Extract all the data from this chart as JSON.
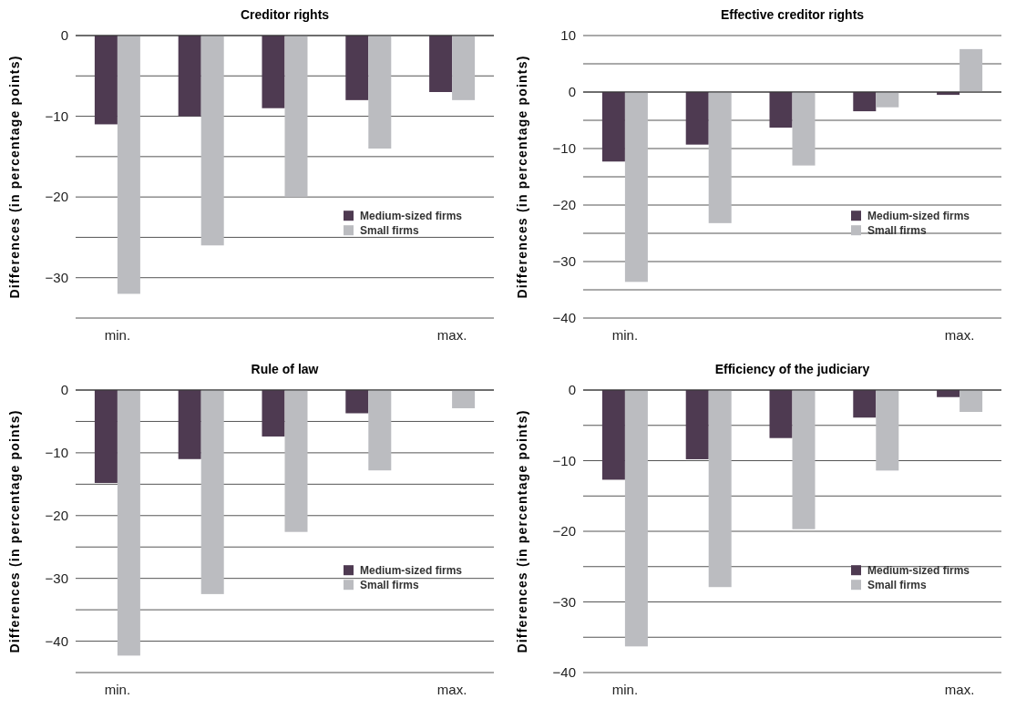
{
  "chart_data": [
    {
      "type": "bar",
      "title": "Creditor rights",
      "ylabel": "Differences (in percentage points)",
      "categories": [
        "min.",
        null,
        null,
        null,
        "max."
      ],
      "series": [
        {
          "name": "Medium-sized firms",
          "color": "#4e3a51",
          "values": [
            -11,
            -10,
            -9,
            -8,
            -7
          ]
        },
        {
          "name": "Small firms",
          "color": "#bbbcc0",
          "values": [
            -32,
            -26,
            -20,
            -14,
            -8
          ]
        }
      ],
      "ylim": [
        -35,
        0
      ],
      "yticks": [
        {
          "value": -35,
          "label": null
        },
        -30,
        {
          "value": -25,
          "label": null
        },
        -20,
        {
          "value": -15,
          "label": null
        },
        -10,
        {
          "value": -5,
          "label": null
        },
        0
      ],
      "grid": "y",
      "legend": "right"
    },
    {
      "type": "bar",
      "title": "Effective creditor rights",
      "ylabel": "Differences (in percentage points)",
      "categories": [
        "min.",
        null,
        null,
        null,
        "max."
      ],
      "series": [
        {
          "name": "Medium-sized firms",
          "color": "#4e3a51",
          "values": [
            -12.3,
            -9.3,
            -6.3,
            -3.4,
            -0.5
          ]
        },
        {
          "name": "Small firms",
          "color": "#bbbcc0",
          "values": [
            -33.6,
            -23.2,
            -13,
            -2.7,
            7.6
          ]
        }
      ],
      "ylim": [
        -40,
        10
      ],
      "yticks": [
        -40,
        {
          "value": -35,
          "label": null
        },
        -30,
        {
          "value": -25,
          "label": null
        },
        -20,
        {
          "value": -15,
          "label": null
        },
        -10,
        {
          "value": -5,
          "label": null
        },
        0,
        {
          "value": 5,
          "label": null
        },
        10
      ],
      "grid": "y",
      "legend": "right"
    },
    {
      "type": "bar",
      "title": "Rule of law",
      "ylabel": "Differences (in percentage points)",
      "categories": [
        "min.",
        null,
        null,
        null,
        "max."
      ],
      "series": [
        {
          "name": "Medium-sized firms",
          "color": "#4e3a51",
          "values": [
            -14.8,
            -11,
            -7.4,
            -3.7,
            null
          ]
        },
        {
          "name": "Small firms",
          "color": "#bbbcc0",
          "values": [
            -42.3,
            -32.5,
            -22.6,
            -12.8,
            -2.9
          ]
        }
      ],
      "ylim": [
        -45,
        0
      ],
      "yticks": [
        {
          "value": -45,
          "label": null
        },
        -40,
        {
          "value": -35,
          "label": null
        },
        -30,
        {
          "value": -25,
          "label": null
        },
        -20,
        {
          "value": -15,
          "label": null
        },
        -10,
        {
          "value": -5,
          "label": null
        },
        0
      ],
      "grid": "y",
      "legend": "right"
    },
    {
      "type": "bar",
      "title": "Efficiency of the judiciary",
      "ylabel": "Differences (in percentage points)",
      "categories": [
        "min.",
        null,
        null,
        null,
        "max."
      ],
      "series": [
        {
          "name": "Medium-sized firms",
          "color": "#4e3a51",
          "values": [
            -12.7,
            -9.8,
            -6.8,
            -3.9,
            -1
          ]
        },
        {
          "name": "Small firms",
          "color": "#bbbcc0",
          "values": [
            -36.3,
            -27.9,
            -19.7,
            -11.4,
            -3.1
          ]
        }
      ],
      "ylim": [
        -40,
        0
      ],
      "yticks": [
        -40,
        {
          "value": -35,
          "label": null
        },
        -30,
        {
          "value": -25,
          "label": null
        },
        -20,
        {
          "value": -15,
          "label": null
        },
        -10,
        {
          "value": -5,
          "label": null
        },
        0
      ],
      "grid": "y",
      "legend": "right"
    }
  ]
}
